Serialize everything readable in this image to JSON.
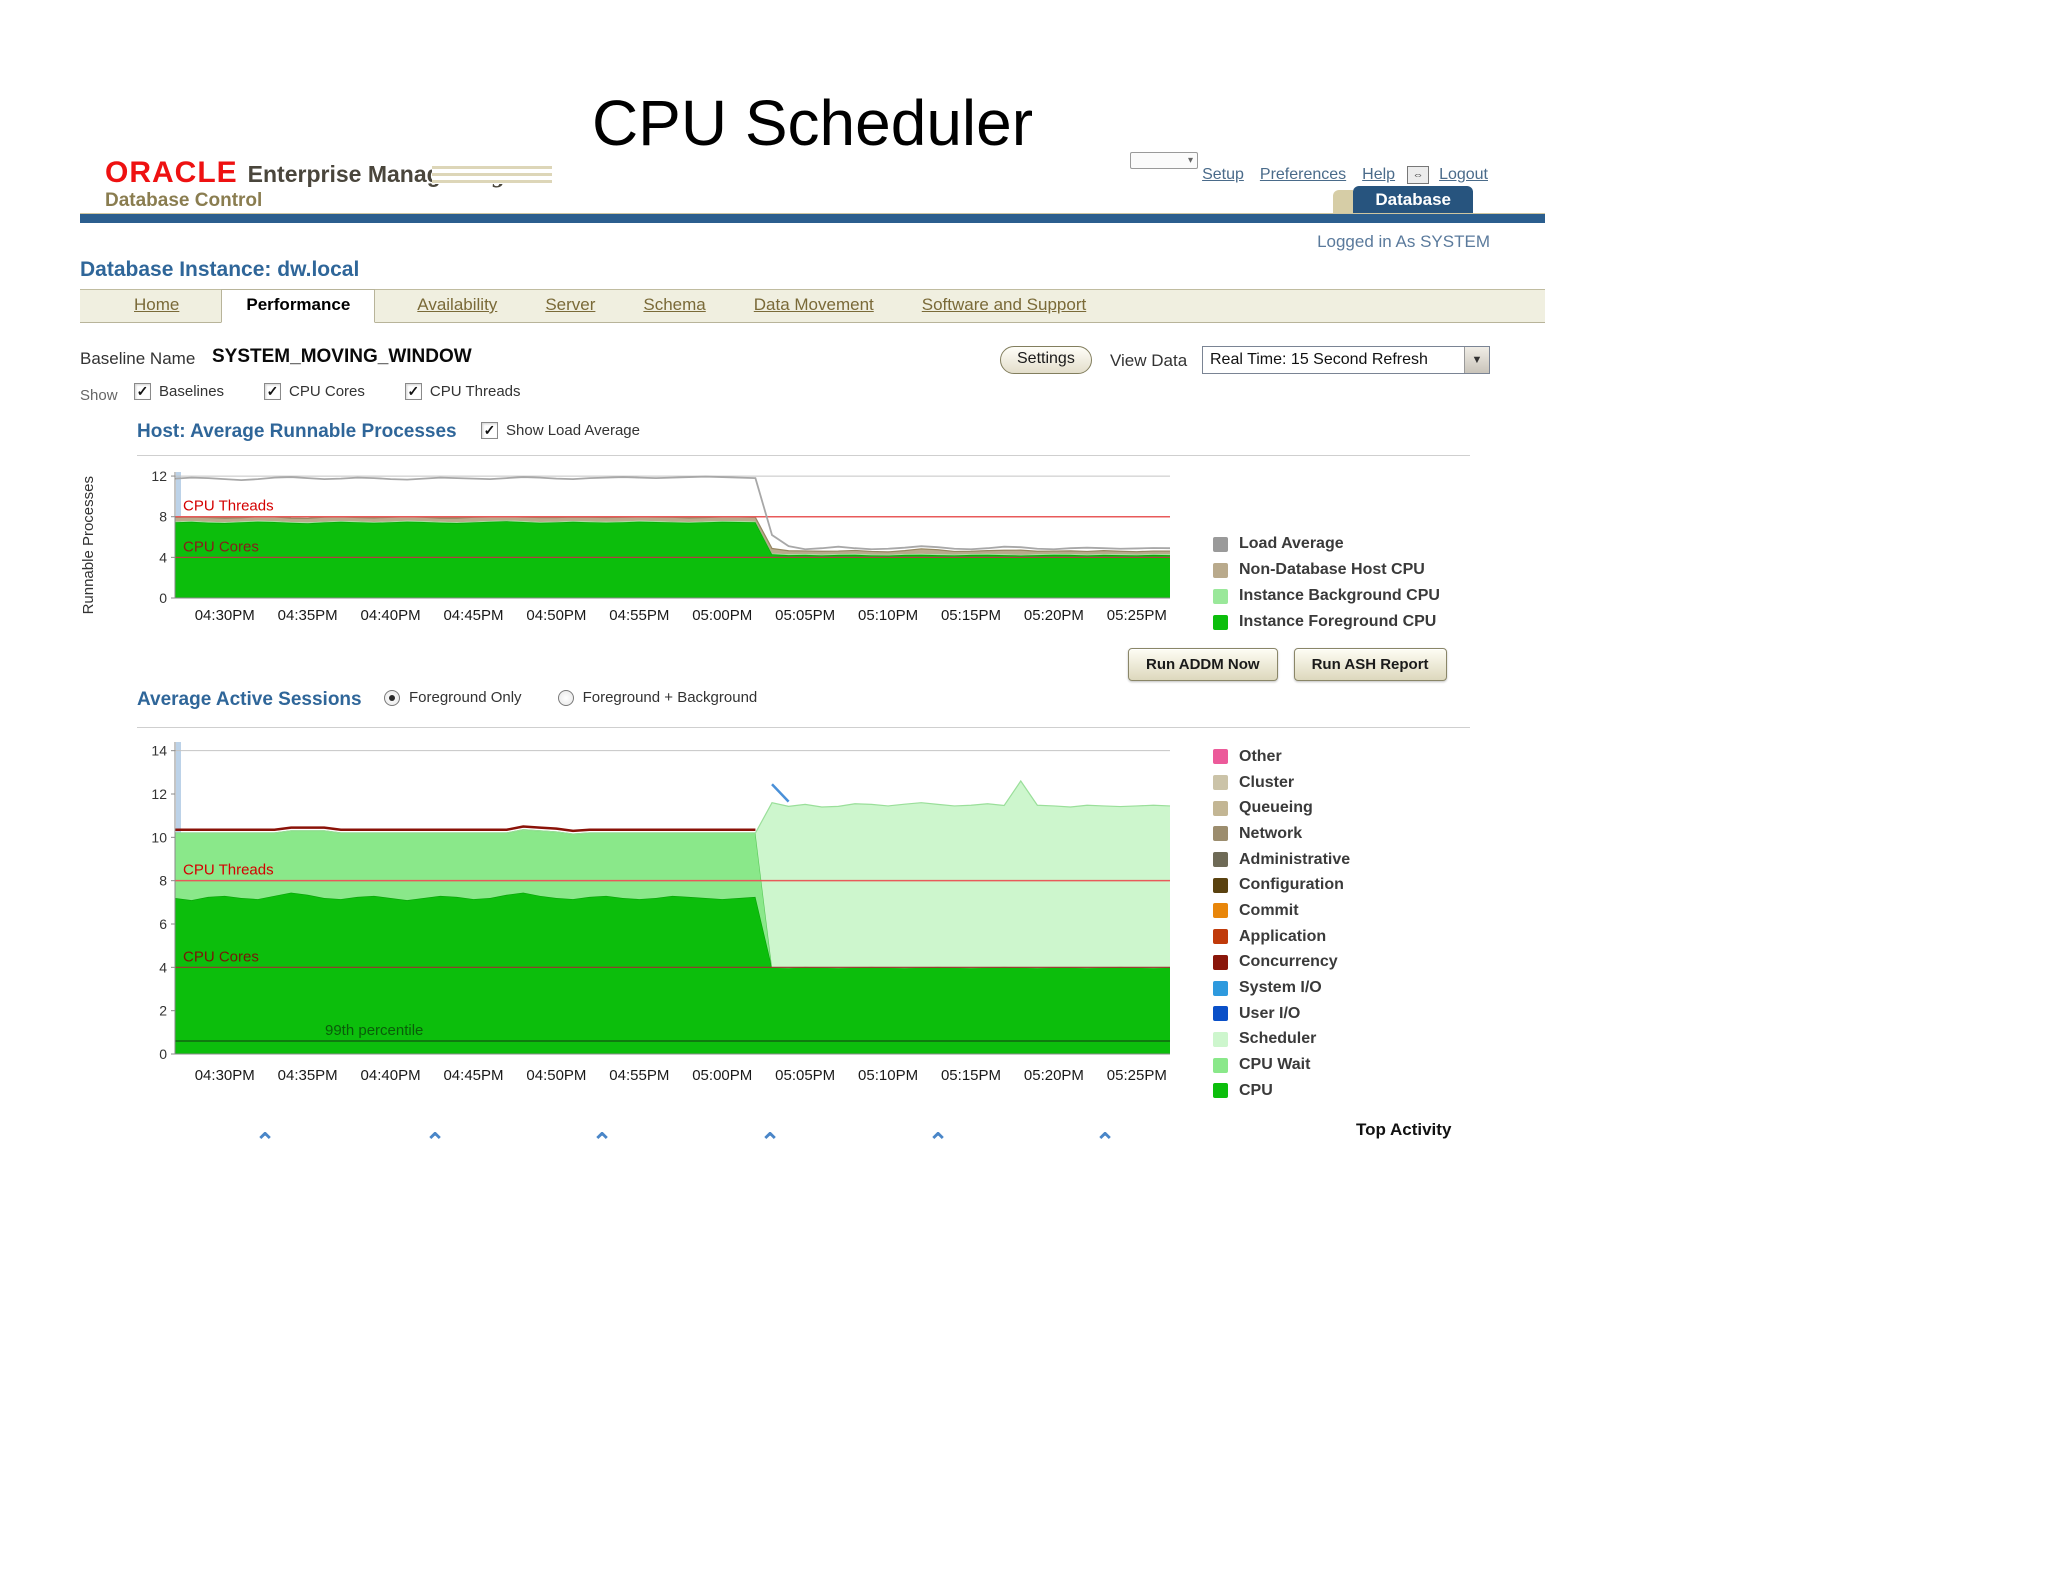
{
  "slide_title": "CPU Scheduler",
  "header": {
    "brand": {
      "oracle": "ORACLE",
      "product": "Enterprise Manager 11",
      "g": "g",
      "subtitle": "Database Control"
    },
    "links": [
      "Setup",
      "Preferences",
      "Help",
      "Logout"
    ],
    "db_tab": "Database",
    "logged_in": "Logged in As SYSTEM"
  },
  "page": {
    "instance_title": "Database Instance: dw.local"
  },
  "tabs": [
    {
      "label": "Home",
      "active": false
    },
    {
      "label": "Performance",
      "active": true
    },
    {
      "label": "Availability",
      "active": false
    },
    {
      "label": "Server",
      "active": false
    },
    {
      "label": "Schema",
      "active": false
    },
    {
      "label": "Data Movement",
      "active": false
    },
    {
      "label": "Software and Support",
      "active": false
    }
  ],
  "controls": {
    "baseline_label": "Baseline Name",
    "baseline_value": "SYSTEM_MOVING_WINDOW",
    "settings_button": "Settings",
    "view_data_label": "View Data",
    "view_data_value": "Real Time: 15 Second Refresh",
    "show_label": "Show",
    "show_options": [
      {
        "label": "Baselines",
        "checked": true
      },
      {
        "label": "CPU Cores",
        "checked": true
      },
      {
        "label": "CPU Threads",
        "checked": true
      }
    ]
  },
  "sections": {
    "chart1_checkbox": "Show Load Average",
    "chart2_radio1": "Foreground Only",
    "chart2_radio2": "Foreground + Background",
    "buttons": [
      "Run ADDM Now",
      "Run ASH Report"
    ],
    "top_activity": "Top Activity"
  },
  "chart_data": [
    {
      "type": "area",
      "title": "Host: Average Runnable Processes",
      "ylabel": "Runnable Processes",
      "ylim": [
        0,
        12.4
      ],
      "yticks": [
        0,
        4,
        8,
        12
      ],
      "n": 61,
      "xticks": {
        "indices": [
          3,
          8,
          13,
          18,
          23,
          28,
          33,
          38,
          43,
          48,
          53,
          58
        ],
        "labels": [
          "04:30PM",
          "04:35PM",
          "04:40PM",
          "04:45PM",
          "04:50PM",
          "04:55PM",
          "05:00PM",
          "05:05PM",
          "05:10PM",
          "05:15PM",
          "05:20PM",
          "05:25PM"
        ]
      },
      "stack": [
        {
          "name": "Instance Foreground CPU",
          "color": "#0cbe0c",
          "edge": "#07a007",
          "values": [
            7.45,
            7.5,
            7.42,
            7.38,
            7.46,
            7.52,
            7.48,
            7.4,
            7.36,
            7.44,
            7.5,
            7.46,
            7.4,
            7.45,
            7.52,
            7.48,
            7.42,
            7.38,
            7.44,
            7.5,
            7.55,
            7.48,
            7.4,
            7.44,
            7.5,
            7.46,
            7.42,
            7.46,
            7.52,
            7.48,
            7.44,
            7.4,
            7.46,
            7.5,
            7.48,
            7.45,
            4.3,
            4.22,
            4.25,
            4.2,
            4.24,
            4.26,
            4.2,
            4.18,
            4.24,
            4.26,
            4.22,
            4.2,
            4.24,
            4.26,
            4.22,
            4.18,
            4.22,
            4.26,
            4.24,
            4.2,
            4.24,
            4.22,
            4.2,
            4.24,
            4.22
          ]
        },
        {
          "name": "Instance Background CPU",
          "color": "#9ae89a",
          "const": 0.08
        },
        {
          "name": "Non-Database Host CPU",
          "color": "#b9aa8c",
          "edge": "#95855f",
          "values": [
            0.4,
            0.38,
            0.42,
            0.4,
            0.36,
            0.4,
            0.42,
            0.38,
            0.4,
            0.44,
            0.4,
            0.38,
            0.4,
            0.42,
            0.4,
            0.38,
            0.36,
            0.4,
            0.42,
            0.4,
            0.38,
            0.4,
            0.44,
            0.4,
            0.38,
            0.4,
            0.42,
            0.4,
            0.38,
            0.4,
            0.42,
            0.4,
            0.38,
            0.4,
            0.42,
            0.4,
            0.5,
            0.35,
            0.3,
            0.32,
            0.3,
            0.34,
            0.3,
            0.28,
            0.34,
            0.5,
            0.45,
            0.3,
            0.28,
            0.32,
            0.4,
            0.45,
            0.3,
            0.28,
            0.32,
            0.3,
            0.34,
            0.3,
            0.28,
            0.3,
            0.32
          ]
        }
      ],
      "lines": [
        {
          "name": "Load Average",
          "color": "#a8a8a8",
          "width": 1.8,
          "values": [
            11.75,
            11.85,
            11.8,
            11.7,
            11.6,
            11.7,
            11.85,
            11.9,
            11.8,
            11.7,
            11.75,
            11.85,
            11.8,
            11.7,
            11.65,
            11.75,
            11.85,
            11.8,
            11.75,
            11.7,
            11.8,
            11.9,
            11.85,
            11.75,
            11.7,
            11.8,
            11.85,
            11.9,
            11.85,
            11.8,
            11.85,
            11.9,
            11.95,
            11.9,
            11.85,
            11.8,
            6.2,
            5.1,
            4.8,
            4.9,
            5.05,
            4.9,
            4.8,
            4.85,
            4.95,
            5.1,
            5.0,
            4.85,
            4.8,
            4.9,
            5.05,
            5.0,
            4.85,
            4.8,
            4.9,
            4.95,
            4.9,
            4.85,
            4.88,
            4.92,
            4.9
          ]
        }
      ],
      "thresholds": [
        {
          "y": 8,
          "color": "#e85a5a",
          "width": 1.5,
          "label": "CPU Threads",
          "label_color": "#d40000",
          "label_dx": 8
        },
        {
          "y": 4,
          "color": "#b04040",
          "width": 1.2,
          "label": "CPU Cores",
          "label_color": "#8a1a1a",
          "label_dx": 8
        }
      ],
      "legend": [
        {
          "label": "Load Average",
          "color": "#9a9a9a"
        },
        {
          "label": "Non-Database Host CPU",
          "color": "#b9aa8c"
        },
        {
          "label": "Instance Background CPU",
          "color": "#9ae89a"
        },
        {
          "label": "Instance Foreground CPU",
          "color": "#0cbe0c"
        }
      ]
    },
    {
      "type": "area",
      "title": "Average Active Sessions",
      "ylabel": "",
      "ylim": [
        0,
        14.4
      ],
      "yticks": [
        0,
        2,
        4,
        6,
        8,
        10,
        12,
        14
      ],
      "n": 61,
      "xticks": {
        "indices": [
          3,
          8,
          13,
          18,
          23,
          28,
          33,
          38,
          43,
          48,
          53,
          58
        ],
        "labels": [
          "04:30PM",
          "04:35PM",
          "04:40PM",
          "04:45PM",
          "04:50PM",
          "04:55PM",
          "05:00PM",
          "05:05PM",
          "05:10PM",
          "05:15PM",
          "05:20PM",
          "05:25PM"
        ]
      },
      "stack": [
        {
          "name": "CPU",
          "color": "#0cbe0c",
          "edge": "#07a007",
          "values": [
            7.2,
            7.1,
            7.25,
            7.3,
            7.2,
            7.15,
            7.3,
            7.45,
            7.35,
            7.2,
            7.15,
            7.25,
            7.3,
            7.2,
            7.1,
            7.2,
            7.3,
            7.25,
            7.15,
            7.2,
            7.35,
            7.45,
            7.3,
            7.2,
            7.15,
            7.25,
            7.3,
            7.2,
            7.15,
            7.2,
            7.3,
            7.25,
            7.2,
            7.15,
            7.2,
            7.25,
            4.0,
            3.98,
            4.02,
            4.0,
            3.98,
            4.0,
            4.02,
            4.0,
            3.98,
            4.0,
            4.02,
            4.0,
            3.98,
            4.0,
            4.02,
            4.0,
            3.98,
            4.0,
            4.0,
            3.98,
            4.0,
            4.02,
            4.0,
            3.98,
            4.0
          ]
        },
        {
          "name": "CPU Wait",
          "color": "#8ae88a",
          "edge": "#58c858",
          "values": [
            3.0,
            3.1,
            2.95,
            2.9,
            3.0,
            3.05,
            2.9,
            2.85,
            2.95,
            3.1,
            3.05,
            2.95,
            2.9,
            3.0,
            3.1,
            3.0,
            2.9,
            2.95,
            3.05,
            3.0,
            2.85,
            2.9,
            3.0,
            3.05,
            3.0,
            2.95,
            2.9,
            3.0,
            3.05,
            3.0,
            2.9,
            2.95,
            3.0,
            3.05,
            3.0,
            2.95,
            0,
            0,
            0,
            0,
            0,
            0,
            0,
            0,
            0,
            0,
            0,
            0,
            0,
            0,
            0,
            0,
            0,
            0,
            0,
            0,
            0,
            0,
            0,
            0,
            0
          ]
        },
        {
          "name": "Scheduler",
          "color": "#cdf6cd",
          "edge": "#9adf9a",
          "values": [
            0,
            0,
            0,
            0,
            0,
            0,
            0,
            0,
            0,
            0,
            0,
            0,
            0,
            0,
            0,
            0,
            0,
            0,
            0,
            0,
            0,
            0,
            0,
            0,
            0,
            0,
            0,
            0,
            0,
            0,
            0,
            0,
            0,
            0,
            0,
            0,
            7.6,
            7.45,
            7.5,
            7.4,
            7.45,
            7.55,
            7.5,
            7.45,
            7.55,
            7.6,
            7.5,
            7.45,
            7.5,
            7.55,
            7.45,
            8.6,
            7.5,
            7.45,
            7.4,
            7.5,
            7.45,
            7.4,
            7.45,
            7.5,
            7.45
          ]
        }
      ],
      "lines": [
        {
          "name": "Wait classes cap",
          "color": "#8a1208",
          "width": 2.5,
          "values": [
            10.35,
            10.35,
            10.35,
            10.35,
            10.35,
            10.35,
            10.35,
            10.45,
            10.45,
            10.45,
            10.35,
            10.35,
            10.35,
            10.35,
            10.35,
            10.35,
            10.35,
            10.35,
            10.35,
            10.35,
            10.35,
            10.5,
            10.45,
            10.4,
            10.3,
            10.35,
            10.35,
            10.35,
            10.35,
            10.35,
            10.35,
            10.35,
            10.35,
            10.35,
            10.35,
            10.35,
            null,
            null,
            null,
            null,
            null,
            null,
            null,
            null,
            null,
            null,
            null,
            null,
            null,
            null,
            null,
            null,
            null,
            null,
            null,
            null,
            null,
            null,
            null,
            null,
            null
          ]
        },
        {
          "name": "System I/O spike",
          "color": "#4a90d8",
          "width": 2.5,
          "values": [
            null,
            null,
            null,
            null,
            null,
            null,
            null,
            null,
            null,
            null,
            null,
            null,
            null,
            null,
            null,
            null,
            null,
            null,
            null,
            null,
            null,
            null,
            null,
            null,
            null,
            null,
            null,
            null,
            null,
            null,
            null,
            null,
            null,
            null,
            null,
            null,
            12.45,
            11.65,
            null,
            null,
            null,
            null,
            null,
            null,
            null,
            null,
            null,
            null,
            null,
            null,
            null,
            null,
            null,
            null,
            null,
            null,
            null,
            null,
            null,
            null,
            null
          ]
        }
      ],
      "thresholds": [
        {
          "y": 8,
          "color": "#e85a5a",
          "width": 1.5,
          "label": "CPU Threads",
          "label_color": "#d40000",
          "label_dx": 8
        },
        {
          "y": 4,
          "color": "#a03030",
          "width": 1.2,
          "label": "CPU Cores",
          "label_color": "#7a1508",
          "label_dx": 8
        },
        {
          "y": 0.6,
          "color": "#0f7a0f",
          "width": 2,
          "label": "99th percentile",
          "label_color": "#0a5c0a",
          "label_dx": 150
        }
      ],
      "legend": [
        {
          "label": "Other",
          "color": "#ec5a9a"
        },
        {
          "label": "Cluster",
          "color": "#cbc3a8"
        },
        {
          "label": "Queueing",
          "color": "#c3b694"
        },
        {
          "label": "Network",
          "color": "#9c8d6e"
        },
        {
          "label": "Administrative",
          "color": "#6e6a56"
        },
        {
          "label": "Configuration",
          "color": "#5a4210"
        },
        {
          "label": "Commit",
          "color": "#e8860a"
        },
        {
          "label": "Application",
          "color": "#c03a0a"
        },
        {
          "label": "Concurrency",
          "color": "#8a160a"
        },
        {
          "label": "System I/O",
          "color": "#2e9ade"
        },
        {
          "label": "User I/O",
          "color": "#0a50c8"
        },
        {
          "label": "Scheduler",
          "color": "#cdf6cd"
        },
        {
          "label": "CPU Wait",
          "color": "#8ae88a"
        },
        {
          "label": "CPU",
          "color": "#0cbe0c"
        }
      ]
    }
  ]
}
